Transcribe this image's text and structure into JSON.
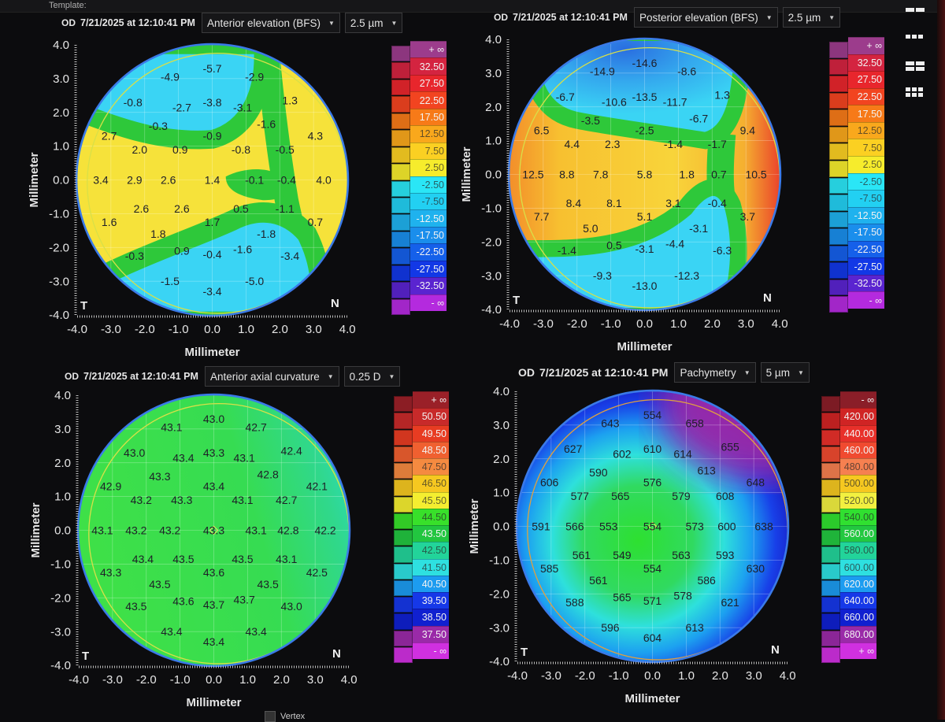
{
  "toolbar": {
    "template_label": "Template:"
  },
  "axis": {
    "label": "Millimeter",
    "x_ticks": [
      "-4.0",
      "-3.0",
      "-2.0",
      "-1.0",
      "0.0",
      "1.0",
      "2.0",
      "3.0",
      "4.0"
    ],
    "y_ticks": [
      "4.0",
      "3.0",
      "2.0",
      "1.0",
      "0.0",
      "-1.0",
      "-2.0",
      "-3.0",
      "-4.0"
    ]
  },
  "orientation": {
    "temporal": "T",
    "nasal": "N"
  },
  "layout_icons": [
    "two-column-layout-icon",
    "three-column-layout-icon",
    "two-by-two-layout-icon",
    "three-by-two-layout-icon"
  ],
  "maps": [
    {
      "eye": "OD",
      "datetime": "7/21/2025 at 12:10:41 PM",
      "type": "Anterior elevation (BFS)",
      "step": "2.5 µm",
      "values": [
        "-5.7",
        "-4.9",
        "-2.9",
        "-0.8",
        "-2.7",
        "-3.8",
        "-3.1",
        "1.3",
        "-0.3",
        "-1.6",
        "2.7",
        "-0.9",
        "4.3",
        "2.0",
        "0.9",
        "-0.8",
        "-0.5",
        "3.4",
        "2.9",
        "2.6",
        "1.4",
        "-0.1",
        "-0.4",
        "4.0",
        "2.6",
        "2.6",
        "0.5",
        "-1.1",
        "1.6",
        "1.7",
        "0.7",
        "1.8",
        "-1.8",
        "-0.3",
        "0.9",
        "-0.4",
        "-1.6",
        "-3.4",
        "-1.5",
        "-5.0",
        "-3.4"
      ],
      "legend": [
        {
          "label": "+ ∞",
          "color": "#9c3c8c"
        },
        {
          "label": "32.50",
          "color": "#d42440"
        },
        {
          "label": "27.50",
          "color": "#e8262c"
        },
        {
          "label": "22.50",
          "color": "#f24420"
        },
        {
          "label": "17.50",
          "color": "#f77a18"
        },
        {
          "label": "12.50",
          "color": "#f9a81c"
        },
        {
          "label": "7.50",
          "color": "#fbd022"
        },
        {
          "label": "2.50",
          "color": "#f6ec2c"
        },
        {
          "label": "-2.50",
          "color": "#2ae6f6"
        },
        {
          "label": "-7.50",
          "color": "#22d0f2"
        },
        {
          "label": "-12.50",
          "color": "#1fb2ee"
        },
        {
          "label": "-17.50",
          "color": "#1a8eec"
        },
        {
          "label": "-22.50",
          "color": "#1560ea"
        },
        {
          "label": "-27.50",
          "color": "#1238e6"
        },
        {
          "label": "-32.50",
          "color": "#5a24d0"
        },
        {
          "label": "- ∞",
          "color": "#b42ade"
        }
      ]
    },
    {
      "eye": "OD",
      "datetime": "7/21/2025 at 12:10:41 PM",
      "type": "Posterior elevation (BFS)",
      "step": "2.5 µm",
      "values": [
        "-14.6",
        "-14.9",
        "-8.6",
        "-6.7",
        "-10.6",
        "-13.5",
        "-11.7",
        "1.3",
        "-3.5",
        "-6.7",
        "6.5",
        "-2.5",
        "9.4",
        "4.4",
        "2.3",
        "-1.4",
        "-1.7",
        "12.5",
        "8.8",
        "7.8",
        "5.8",
        "1.8",
        "0.7",
        "10.5",
        "8.4",
        "8.1",
        "3.1",
        "-0.4",
        "7.7",
        "5.1",
        "3.7",
        "5.0",
        "-3.1",
        "-1.4",
        "0.5",
        "-3.1",
        "-4.4",
        "-6.3",
        "-9.3",
        "-12.3",
        "-13.0"
      ],
      "legend": [
        {
          "label": "+ ∞",
          "color": "#9c3c8c"
        },
        {
          "label": "32.50",
          "color": "#d42440"
        },
        {
          "label": "27.50",
          "color": "#e8262c"
        },
        {
          "label": "22.50",
          "color": "#f24420"
        },
        {
          "label": "17.50",
          "color": "#f77a18"
        },
        {
          "label": "12.50",
          "color": "#f9a81c"
        },
        {
          "label": "7.50",
          "color": "#fbd022"
        },
        {
          "label": "2.50",
          "color": "#f6ec2c"
        },
        {
          "label": "-2.50",
          "color": "#2ae6f6"
        },
        {
          "label": "-7.50",
          "color": "#22d0f2"
        },
        {
          "label": "-12.50",
          "color": "#1fb2ee"
        },
        {
          "label": "-17.50",
          "color": "#1a8eec"
        },
        {
          "label": "-22.50",
          "color": "#1560ea"
        },
        {
          "label": "-27.50",
          "color": "#1238e6"
        },
        {
          "label": "-32.50",
          "color": "#5a24d0"
        },
        {
          "label": "- ∞",
          "color": "#b42ade"
        }
      ]
    },
    {
      "eye": "OD",
      "datetime": "7/21/2025 at 12:10:41 PM",
      "type": "Anterior axial curvature",
      "step": "0.25 D",
      "values": [
        "43.0",
        "43.1",
        "42.7",
        "43.0",
        "43.4",
        "43.3",
        "43.1",
        "42.4",
        "43.3",
        "42.8",
        "42.9",
        "43.4",
        "42.1",
        "43.2",
        "43.3",
        "43.1",
        "42.7",
        "43.1",
        "43.2",
        "43.2",
        "43.3",
        "43.1",
        "42.8",
        "42.2",
        "43.4",
        "43.5",
        "43.5",
        "43.1",
        "43.3",
        "43.6",
        "42.5",
        "43.5",
        "43.5",
        "43.5",
        "43.6",
        "43.7",
        "43.7",
        "43.0",
        "43.4",
        "43.4",
        "43.4"
      ],
      "legend": [
        {
          "label": "+ ∞",
          "color": "#9a2028"
        },
        {
          "label": "50.50",
          "color": "#c82a2a"
        },
        {
          "label": "49.50",
          "color": "#e83c22"
        },
        {
          "label": "48.50",
          "color": "#f06030"
        },
        {
          "label": "47.50",
          "color": "#f58a40"
        },
        {
          "label": "46.50",
          "color": "#f6c820"
        },
        {
          "label": "45.50",
          "color": "#f4ee30"
        },
        {
          "label": "44.50",
          "color": "#38e02a"
        },
        {
          "label": "43.50",
          "color": "#22c640"
        },
        {
          "label": "42.50",
          "color": "#22d49a"
        },
        {
          "label": "41.50",
          "color": "#2ee0e0"
        },
        {
          "label": "40.50",
          "color": "#1c9cf0"
        },
        {
          "label": "39.50",
          "color": "#1638e8"
        },
        {
          "label": "38.50",
          "color": "#1020d0"
        },
        {
          "label": "37.50",
          "color": "#9a2aa8"
        },
        {
          "label": "- ∞",
          "color": "#d030e0"
        }
      ]
    },
    {
      "eye": "OD",
      "datetime": "7/21/2025 at 12:10:41 PM",
      "type": "Pachymetry",
      "step": "5 µm",
      "values": [
        "554",
        "643",
        "658",
        "627",
        "602",
        "610",
        "614",
        "655",
        "590",
        "613",
        "606",
        "576",
        "648",
        "577",
        "565",
        "579",
        "608",
        "591",
        "566",
        "553",
        "554",
        "573",
        "600",
        "638",
        "561",
        "549",
        "563",
        "593",
        "585",
        "554",
        "630",
        "561",
        "586",
        "588",
        "565",
        "571",
        "578",
        "621",
        "596",
        "613",
        "604"
      ],
      "legend": [
        {
          "label": "- ∞",
          "color": "#8a1e28"
        },
        {
          "label": "420.00",
          "color": "#d02424"
        },
        {
          "label": "440.00",
          "color": "#e8302a"
        },
        {
          "label": "460.00",
          "color": "#f04a30"
        },
        {
          "label": "480.00",
          "color": "#f68050"
        },
        {
          "label": "500.00",
          "color": "#f6c820"
        },
        {
          "label": "520.00",
          "color": "#f2f040"
        },
        {
          "label": "540.00",
          "color": "#30e030"
        },
        {
          "label": "560.00",
          "color": "#22c840"
        },
        {
          "label": "580.00",
          "color": "#22d49a"
        },
        {
          "label": "600.00",
          "color": "#2ee0e0"
        },
        {
          "label": "620.00",
          "color": "#1c9cf0"
        },
        {
          "label": "640.00",
          "color": "#1638e8"
        },
        {
          "label": "660.00",
          "color": "#1020d0"
        },
        {
          "label": "680.00",
          "color": "#9a2aa8"
        },
        {
          "label": "+ ∞",
          "color": "#d030e0"
        }
      ]
    }
  ],
  "footer": {
    "vertex_label": "Vertex"
  }
}
